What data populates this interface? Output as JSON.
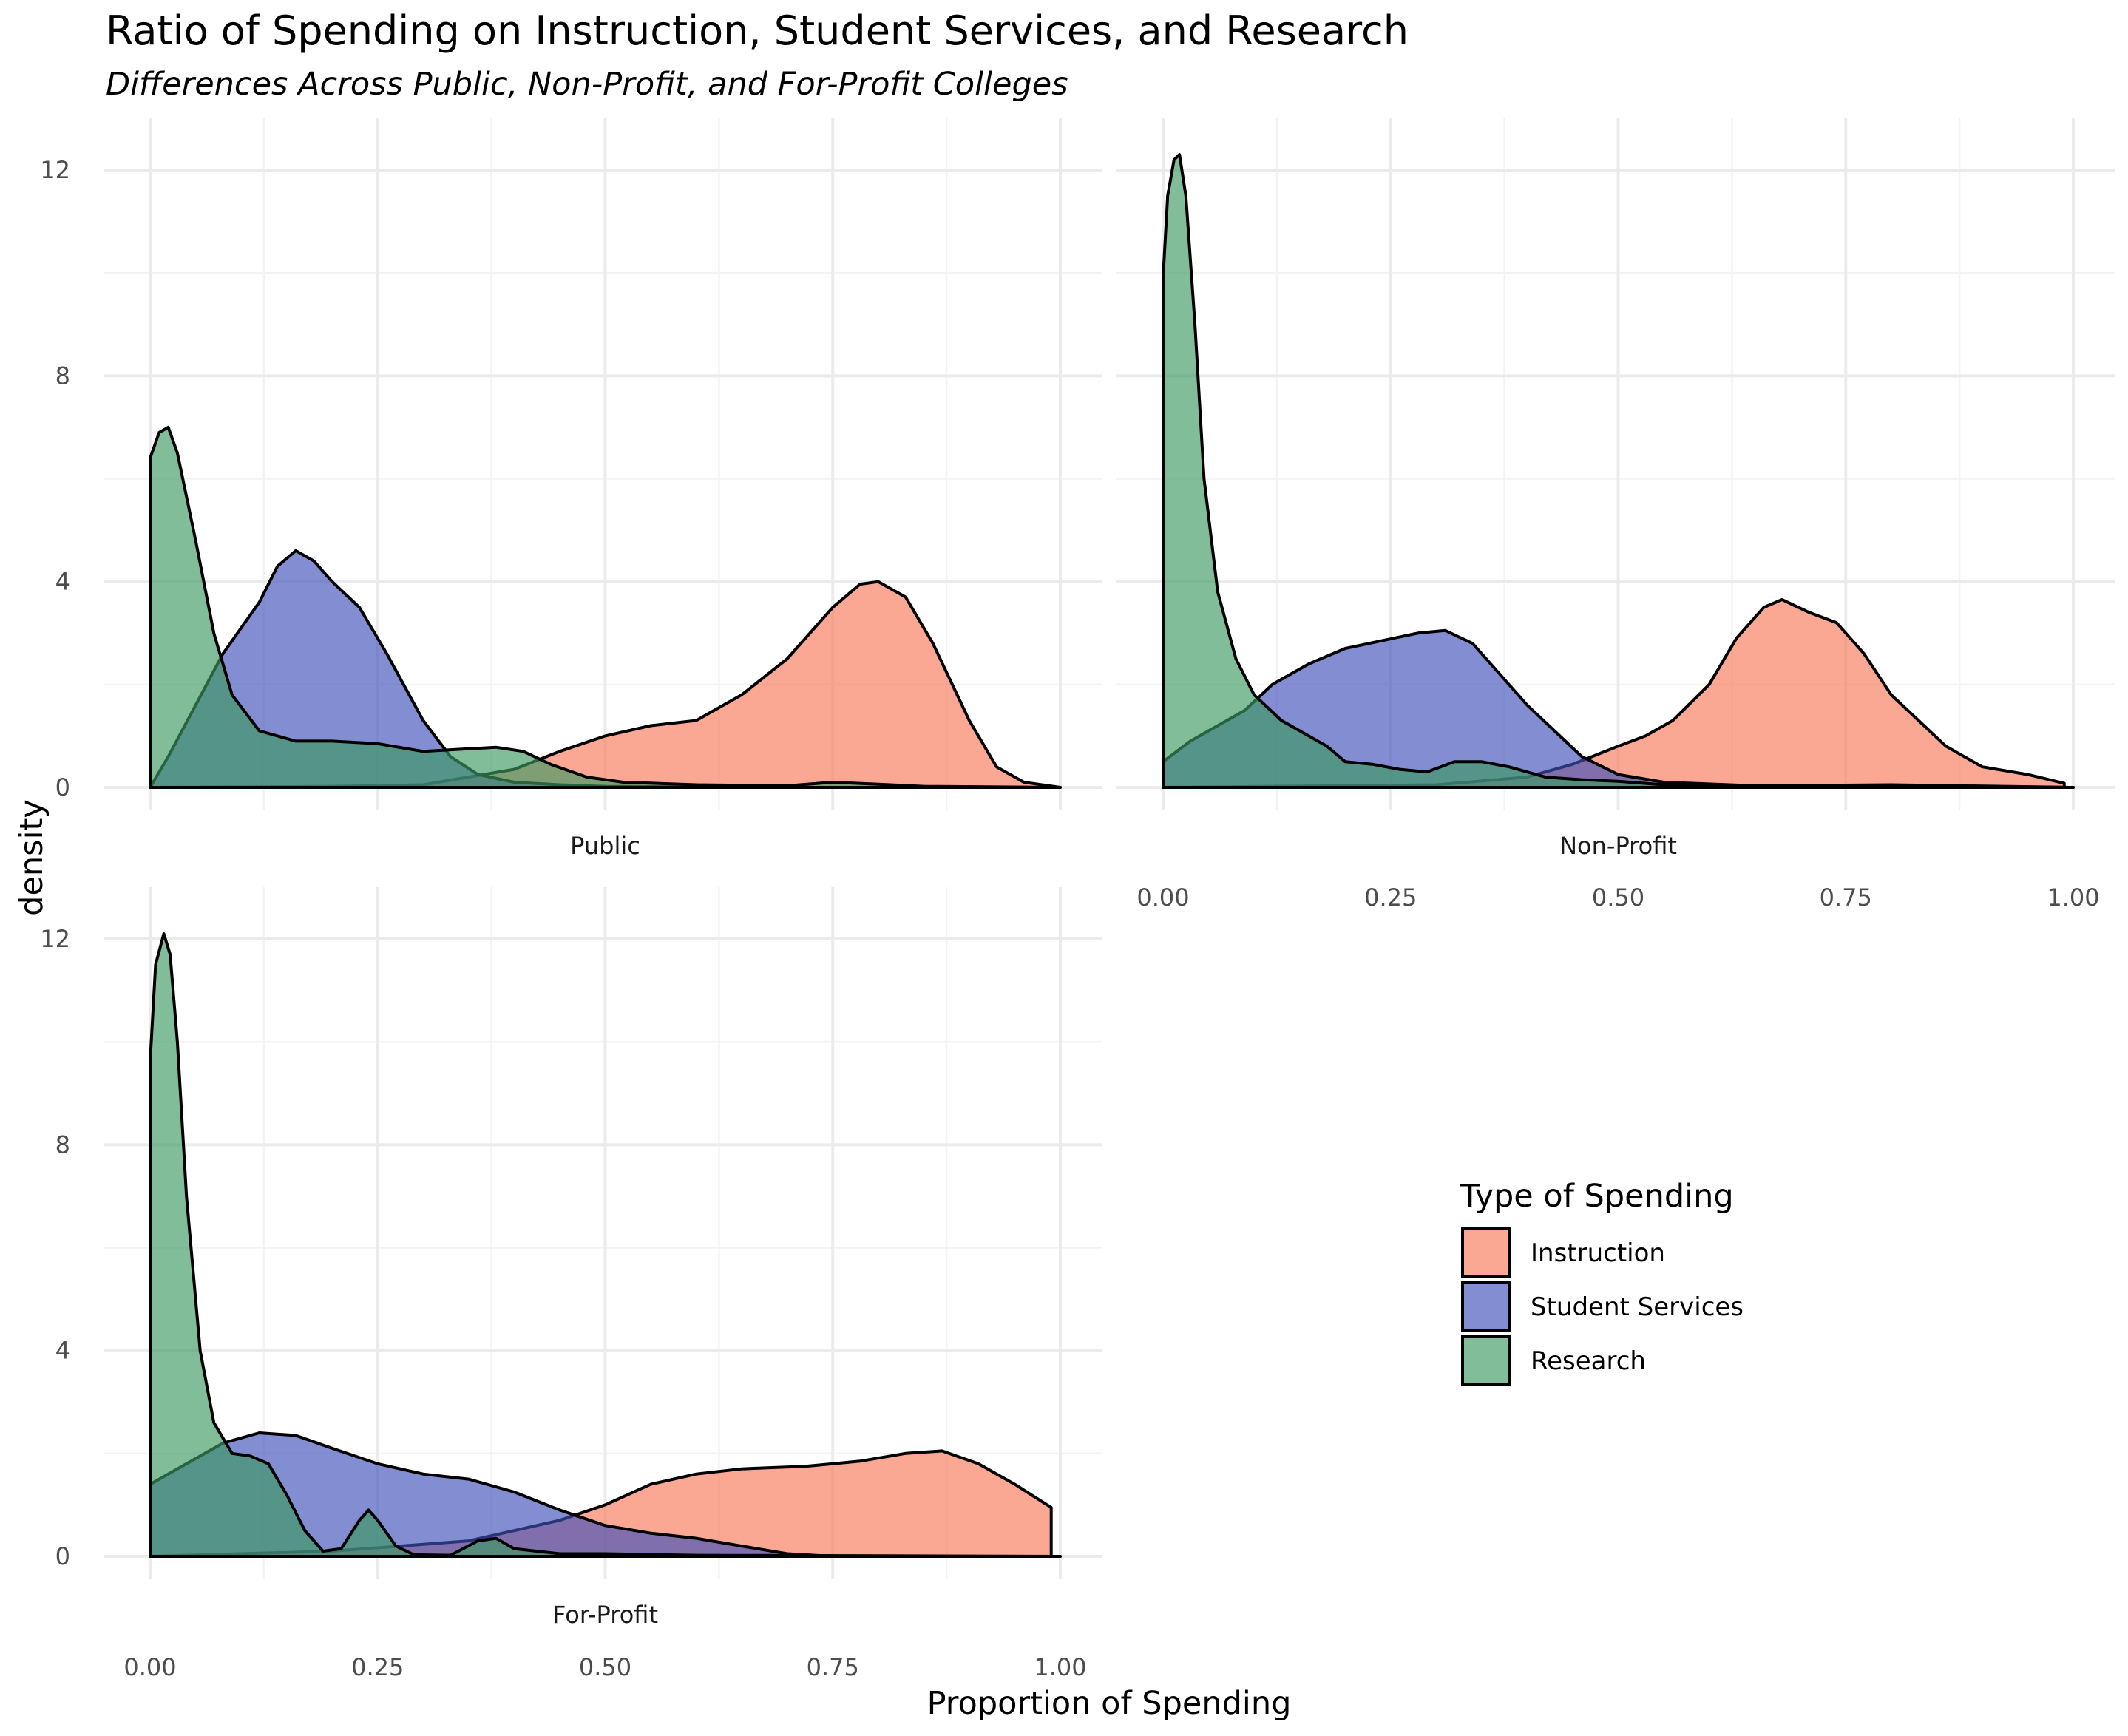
{
  "chart_data": {
    "type": "area",
    "subtype": "density",
    "title": "Ratio of Spending on Instruction, Student Services, and Research",
    "subtitle": "Differences Across Public, Non-Profit, and For-Profit Colleges",
    "xlabel": "Proportion of Spending",
    "ylabel": "density",
    "xlim": [
      0,
      1
    ],
    "ylim": [
      0,
      12.4
    ],
    "x_ticks": [
      "0.00",
      "0.25",
      "0.50",
      "0.75",
      "1.00"
    ],
    "y_ticks": [
      "0",
      "4",
      "8",
      "12"
    ],
    "grid": true,
    "legend": {
      "title": "Type of Spending",
      "position": "right",
      "items": [
        {
          "label": "Instruction",
          "color": "#f8785a"
        },
        {
          "label": "Student Services",
          "color": "#3f52b8"
        },
        {
          "label": "Research",
          "color": "#3d9962"
        }
      ]
    },
    "facets": [
      {
        "label": "Public",
        "series": [
          {
            "name": "Instruction",
            "color": "#f8785a",
            "points": [
              [
                0,
                0
              ],
              [
                0.2,
                0.02
              ],
              [
                0.3,
                0.05
              ],
              [
                0.4,
                0.35
              ],
              [
                0.45,
                0.7
              ],
              [
                0.5,
                1.0
              ],
              [
                0.55,
                1.2
              ],
              [
                0.6,
                1.3
              ],
              [
                0.65,
                1.8
              ],
              [
                0.7,
                2.5
              ],
              [
                0.75,
                3.5
              ],
              [
                0.78,
                3.95
              ],
              [
                0.8,
                4.0
              ],
              [
                0.83,
                3.7
              ],
              [
                0.86,
                2.8
              ],
              [
                0.9,
                1.3
              ],
              [
                0.93,
                0.4
              ],
              [
                0.96,
                0.1
              ],
              [
                1.0,
                0
              ]
            ]
          },
          {
            "name": "Student Services",
            "color": "#3f52b8",
            "points": [
              [
                0,
                0
              ],
              [
                0.02,
                0.6
              ],
              [
                0.05,
                1.6
              ],
              [
                0.08,
                2.6
              ],
              [
                0.1,
                3.1
              ],
              [
                0.12,
                3.6
              ],
              [
                0.14,
                4.3
              ],
              [
                0.16,
                4.6
              ],
              [
                0.18,
                4.4
              ],
              [
                0.2,
                4.0
              ],
              [
                0.23,
                3.5
              ],
              [
                0.26,
                2.6
              ],
              [
                0.3,
                1.3
              ],
              [
                0.33,
                0.6
              ],
              [
                0.36,
                0.25
              ],
              [
                0.4,
                0.1
              ],
              [
                0.45,
                0.05
              ],
              [
                0.5,
                0.02
              ],
              [
                0.6,
                0.01
              ],
              [
                0.7,
                0
              ],
              [
                1.0,
                0
              ]
            ]
          },
          {
            "name": "Research",
            "color": "#3d9962",
            "points": [
              [
                0,
                6.4
              ],
              [
                0.01,
                6.9
              ],
              [
                0.02,
                7.0
              ],
              [
                0.03,
                6.5
              ],
              [
                0.05,
                4.8
              ],
              [
                0.07,
                3.0
              ],
              [
                0.09,
                1.8
              ],
              [
                0.12,
                1.1
              ],
              [
                0.16,
                0.9
              ],
              [
                0.2,
                0.9
              ],
              [
                0.25,
                0.85
              ],
              [
                0.3,
                0.7
              ],
              [
                0.35,
                0.75
              ],
              [
                0.38,
                0.78
              ],
              [
                0.41,
                0.7
              ],
              [
                0.44,
                0.45
              ],
              [
                0.48,
                0.2
              ],
              [
                0.52,
                0.1
              ],
              [
                0.6,
                0.05
              ],
              [
                0.7,
                0.03
              ],
              [
                0.75,
                0.1
              ],
              [
                0.8,
                0.06
              ],
              [
                0.85,
                0.02
              ],
              [
                1.0,
                0
              ]
            ]
          }
        ]
      },
      {
        "label": "Non-Profit",
        "series": [
          {
            "name": "Instruction",
            "color": "#f8785a",
            "points": [
              [
                0,
                0
              ],
              [
                0.3,
                0.05
              ],
              [
                0.4,
                0.2
              ],
              [
                0.45,
                0.45
              ],
              [
                0.5,
                0.8
              ],
              [
                0.53,
                1.0
              ],
              [
                0.56,
                1.3
              ],
              [
                0.6,
                2.0
              ],
              [
                0.63,
                2.9
              ],
              [
                0.66,
                3.5
              ],
              [
                0.68,
                3.65
              ],
              [
                0.71,
                3.4
              ],
              [
                0.74,
                3.2
              ],
              [
                0.77,
                2.6
              ],
              [
                0.8,
                1.8
              ],
              [
                0.83,
                1.3
              ],
              [
                0.86,
                0.8
              ],
              [
                0.9,
                0.4
              ],
              [
                0.95,
                0.25
              ],
              [
                0.99,
                0.08
              ]
            ]
          },
          {
            "name": "Student Services",
            "color": "#3f52b8",
            "points": [
              [
                0,
                0.5
              ],
              [
                0.03,
                0.9
              ],
              [
                0.06,
                1.2
              ],
              [
                0.09,
                1.5
              ],
              [
                0.12,
                2.0
              ],
              [
                0.16,
                2.4
              ],
              [
                0.2,
                2.7
              ],
              [
                0.24,
                2.85
              ],
              [
                0.28,
                3.0
              ],
              [
                0.31,
                3.05
              ],
              [
                0.34,
                2.8
              ],
              [
                0.37,
                2.2
              ],
              [
                0.4,
                1.6
              ],
              [
                0.43,
                1.1
              ],
              [
                0.46,
                0.6
              ],
              [
                0.5,
                0.25
              ],
              [
                0.55,
                0.1
              ],
              [
                0.65,
                0.03
              ],
              [
                0.8,
                0.02
              ],
              [
                1.0,
                0
              ]
            ]
          },
          {
            "name": "Research",
            "color": "#3d9962",
            "points": [
              [
                0,
                9.9
              ],
              [
                0.005,
                11.5
              ],
              [
                0.012,
                12.2
              ],
              [
                0.018,
                12.3
              ],
              [
                0.025,
                11.5
              ],
              [
                0.035,
                9.0
              ],
              [
                0.045,
                6.0
              ],
              [
                0.06,
                3.8
              ],
              [
                0.08,
                2.5
              ],
              [
                0.1,
                1.8
              ],
              [
                0.13,
                1.3
              ],
              [
                0.16,
                1.0
              ],
              [
                0.18,
                0.8
              ],
              [
                0.2,
                0.5
              ],
              [
                0.23,
                0.45
              ],
              [
                0.26,
                0.35
              ],
              [
                0.29,
                0.3
              ],
              [
                0.32,
                0.5
              ],
              [
                0.35,
                0.5
              ],
              [
                0.38,
                0.4
              ],
              [
                0.42,
                0.2
              ],
              [
                0.46,
                0.15
              ],
              [
                0.5,
                0.12
              ],
              [
                0.55,
                0.05
              ],
              [
                0.65,
                0.03
              ],
              [
                0.8,
                0.05
              ],
              [
                1.0,
                0
              ]
            ]
          }
        ]
      },
      {
        "label": "For-Profit",
        "series": [
          {
            "name": "Instruction",
            "color": "#f8785a",
            "points": [
              [
                0,
                0
              ],
              [
                0.2,
                0.1
              ],
              [
                0.35,
                0.3
              ],
              [
                0.45,
                0.7
              ],
              [
                0.5,
                1.0
              ],
              [
                0.55,
                1.4
              ],
              [
                0.6,
                1.6
              ],
              [
                0.65,
                1.7
              ],
              [
                0.72,
                1.75
              ],
              [
                0.78,
                1.85
              ],
              [
                0.83,
                2.0
              ],
              [
                0.87,
                2.05
              ],
              [
                0.91,
                1.8
              ],
              [
                0.95,
                1.4
              ],
              [
                0.99,
                0.95
              ]
            ]
          },
          {
            "name": "Student Services",
            "color": "#3f52b8",
            "points": [
              [
                0,
                1.4
              ],
              [
                0.04,
                1.8
              ],
              [
                0.08,
                2.2
              ],
              [
                0.12,
                2.4
              ],
              [
                0.16,
                2.35
              ],
              [
                0.2,
                2.1
              ],
              [
                0.25,
                1.8
              ],
              [
                0.3,
                1.6
              ],
              [
                0.35,
                1.5
              ],
              [
                0.4,
                1.25
              ],
              [
                0.45,
                0.9
              ],
              [
                0.5,
                0.6
              ],
              [
                0.55,
                0.45
              ],
              [
                0.6,
                0.35
              ],
              [
                0.65,
                0.2
              ],
              [
                0.7,
                0.05
              ],
              [
                0.75,
                0
              ],
              [
                1.0,
                0
              ]
            ]
          },
          {
            "name": "Research",
            "color": "#3d9962",
            "points": [
              [
                0,
                9.6
              ],
              [
                0.006,
                11.5
              ],
              [
                0.015,
                12.1
              ],
              [
                0.022,
                11.7
              ],
              [
                0.03,
                10.0
              ],
              [
                0.04,
                7.0
              ],
              [
                0.055,
                4.0
              ],
              [
                0.07,
                2.6
              ],
              [
                0.09,
                2.0
              ],
              [
                0.11,
                1.95
              ],
              [
                0.13,
                1.8
              ],
              [
                0.15,
                1.2
              ],
              [
                0.17,
                0.5
              ],
              [
                0.19,
                0.1
              ],
              [
                0.21,
                0.15
              ],
              [
                0.23,
                0.7
              ],
              [
                0.24,
                0.9
              ],
              [
                0.25,
                0.7
              ],
              [
                0.27,
                0.2
              ],
              [
                0.29,
                0.03
              ],
              [
                0.33,
                0.02
              ],
              [
                0.36,
                0.3
              ],
              [
                0.38,
                0.35
              ],
              [
                0.4,
                0.15
              ],
              [
                0.45,
                0.05
              ],
              [
                0.5,
                0.05
              ],
              [
                0.6,
                0.02
              ],
              [
                0.8,
                0.01
              ],
              [
                1.0,
                0
              ]
            ]
          }
        ]
      }
    ]
  }
}
